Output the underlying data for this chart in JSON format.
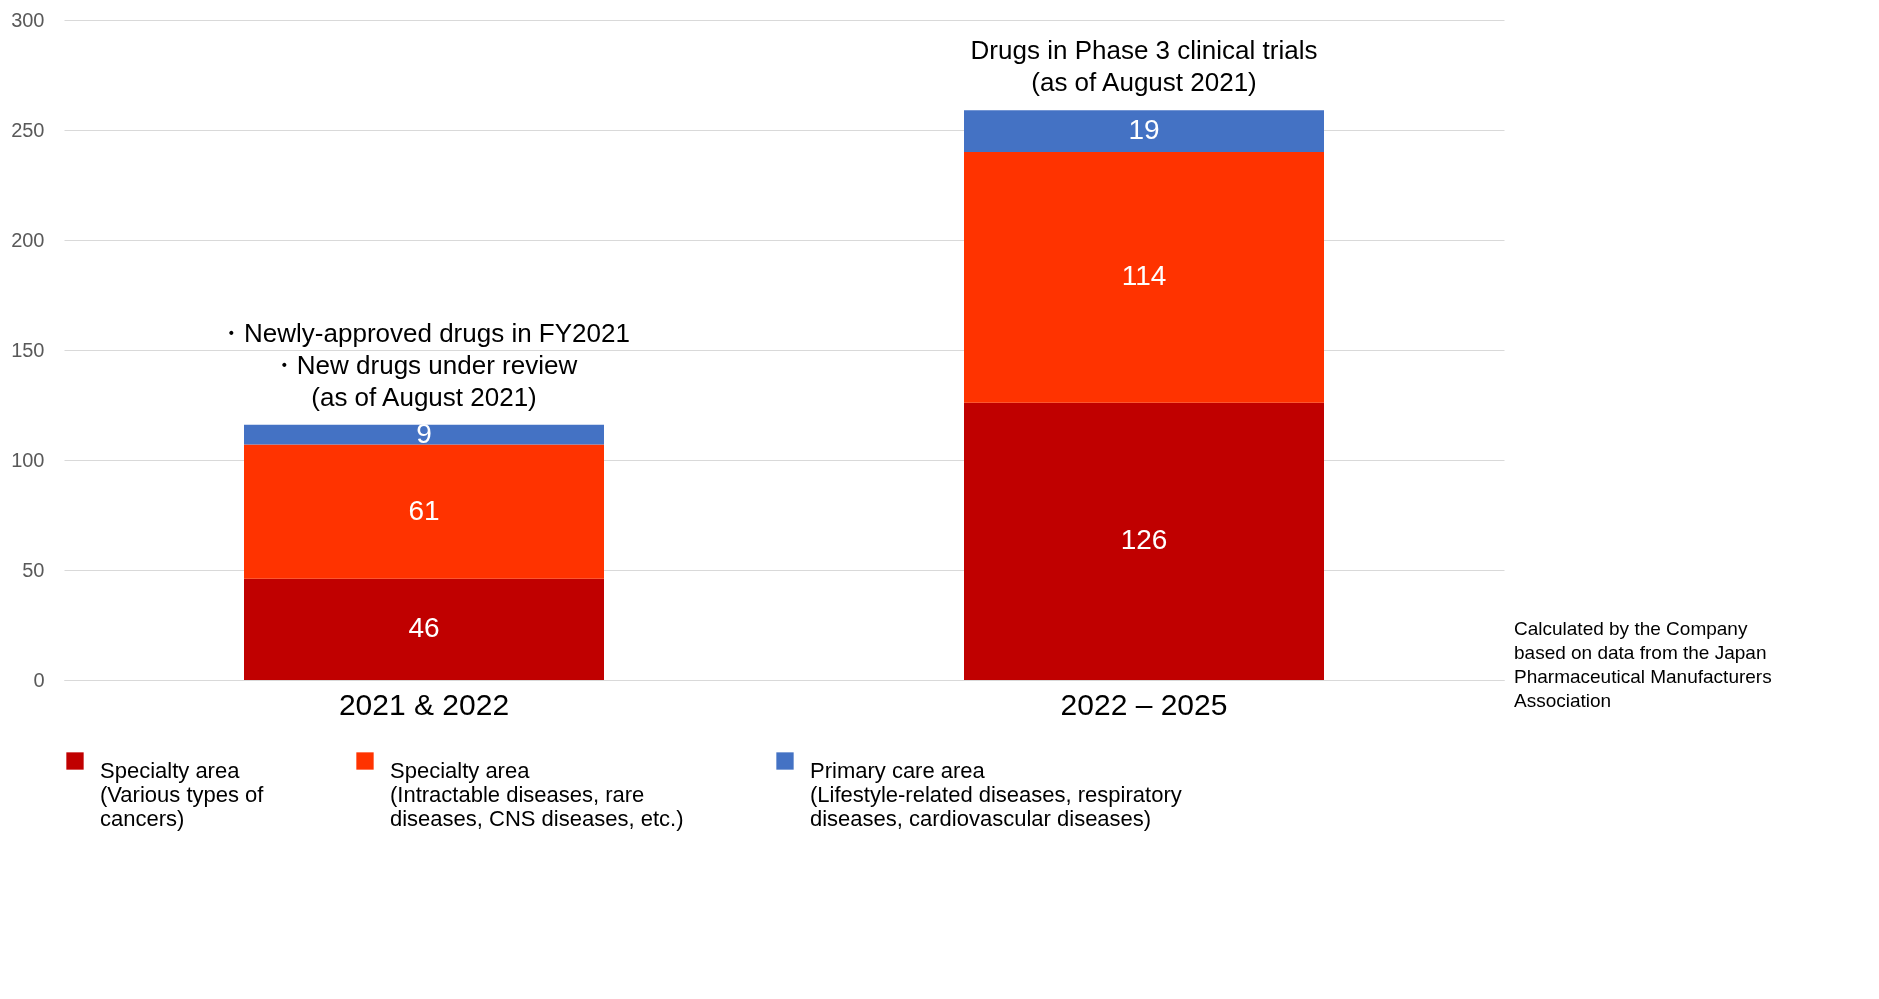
{
  "chart_data": {
    "type": "bar",
    "stacked": true,
    "categories": [
      "2021 & 2022",
      "2022 – 2025"
    ],
    "series": [
      {
        "name": "Specialty area\n(Various types of\ncancers)",
        "color": "#c00000",
        "values": [
          46,
          126
        ]
      },
      {
        "name": "Specialty area\n(Intractable diseases, rare\ndiseases, CNS diseases, etc.)",
        "color": "#ff3300",
        "values": [
          61,
          114
        ]
      },
      {
        "name": "Primary care area\n(Lifestyle-related diseases, respiratory\ndiseases, cardiovascular diseases)",
        "color": "#4472c4",
        "values": [
          9,
          19
        ]
      }
    ],
    "ylim": [
      0,
      300
    ],
    "yticks": [
      0,
      50,
      100,
      150,
      200,
      250,
      300
    ],
    "grid": "y",
    "legend": "bottom",
    "data_labels": true,
    "annotations": [
      {
        "text": "・Newly-approved drugs in FY2021\n・New drugs under review\n    (as of August 2021)",
        "x": "2021 & 2022",
        "y": 116
      },
      {
        "text": "Drugs in Phase 3 clinical trials\n(as of August 2021)",
        "x": "2022 – 2025",
        "y": 259
      },
      "Calculated by the Company\nbased on data from the Japan\nPharmaceutical Manufacturers\nAssociation"
    ]
  }
}
